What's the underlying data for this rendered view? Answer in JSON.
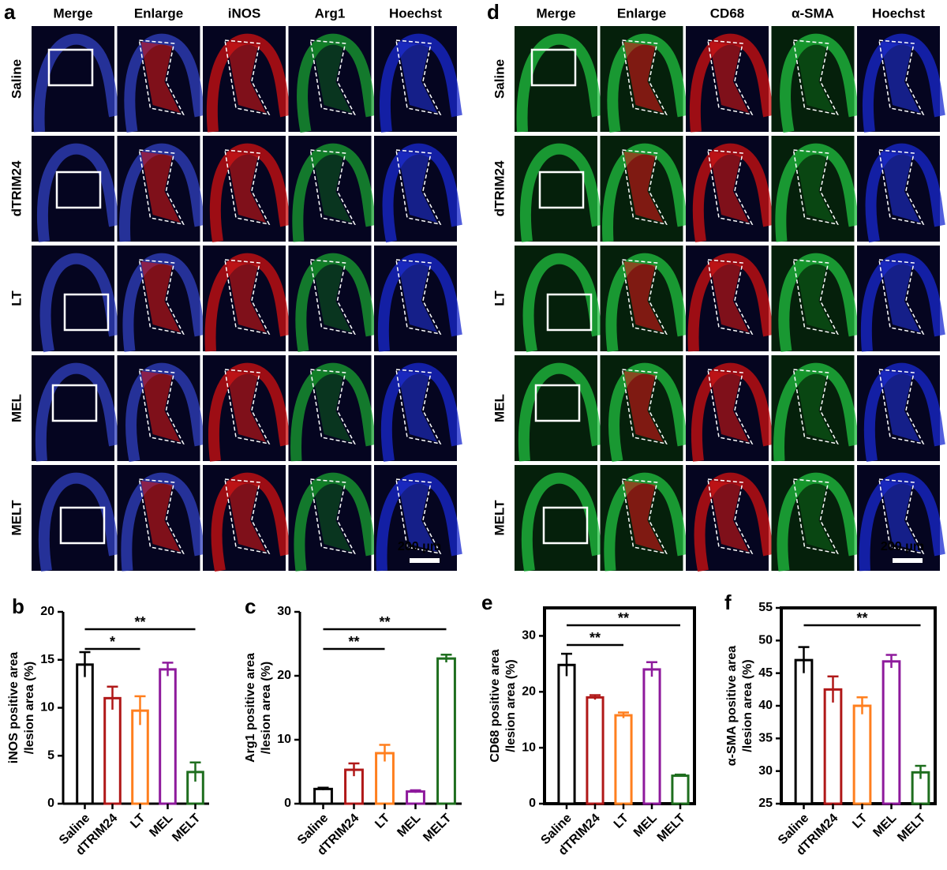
{
  "panel_a": {
    "letter": "a",
    "columns": [
      "Merge",
      "Enlarge",
      "iNOS",
      "Arg1",
      "Hoechst"
    ],
    "column_colors": [
      "#000000",
      "#000000",
      "#e8141c",
      "#1fa84a",
      "#1a2ed8"
    ],
    "rows": [
      "Saline",
      "dTRIM24",
      "LT",
      "MEL",
      "MELT"
    ],
    "scale_bar": "200 μm"
  },
  "panel_d": {
    "letter": "d",
    "columns": [
      "Merge",
      "Enlarge",
      "CD68",
      "α-SMA",
      "Hoechst"
    ],
    "column_colors": [
      "#000000",
      "#000000",
      "#e8141c",
      "#1fa84a",
      "#1a2ed8"
    ],
    "rows": [
      "Saline",
      "dTRIM24",
      "LT",
      "MEL",
      "MELT"
    ],
    "scale_bar": "200 μm"
  },
  "chart_data": [
    {
      "type": "bar",
      "panel": "b",
      "ylabel": [
        "iNOS positive area",
        "/lesion area (%)"
      ],
      "categories": [
        "Saline",
        "dTRIM24",
        "LT",
        "MEL",
        "MELT"
      ],
      "values": [
        14.5,
        11,
        9.7,
        14,
        3.3
      ],
      "errors": [
        1.3,
        1.2,
        1.5,
        0.7,
        1.0
      ],
      "colors": [
        "#000000",
        "#b01818",
        "#ff7f1e",
        "#8e1a9c",
        "#1e6e1e"
      ],
      "ylim": [
        0,
        20
      ],
      "yticks": [
        0,
        5,
        10,
        15,
        20
      ],
      "frame": false,
      "annotations": [
        {
          "text": "*",
          "from": "Saline",
          "to": "LT"
        },
        {
          "text": "**",
          "from": "Saline",
          "to": "MELT"
        }
      ]
    },
    {
      "type": "bar",
      "panel": "c",
      "ylabel": [
        "Arg1 positive area",
        "/lesion area (%)"
      ],
      "categories": [
        "Saline",
        "dTRIM24",
        "LT",
        "MEL",
        "MELT"
      ],
      "values": [
        2.3,
        5.3,
        7.9,
        1.9,
        22.7
      ],
      "errors": [
        0.2,
        1.0,
        1.3,
        0.2,
        0.6
      ],
      "colors": [
        "#000000",
        "#b01818",
        "#ff7f1e",
        "#8e1a9c",
        "#1e6e1e"
      ],
      "ylim": [
        0,
        30
      ],
      "yticks": [
        0,
        10,
        20,
        30
      ],
      "frame": false,
      "annotations": [
        {
          "text": "**",
          "from": "Saline",
          "to": "LT"
        },
        {
          "text": "**",
          "from": "Saline",
          "to": "MELT"
        }
      ]
    },
    {
      "type": "bar",
      "panel": "e",
      "ylabel": [
        "CD68 positive area",
        "/lesion area (%)"
      ],
      "categories": [
        "Saline",
        "dTRIM24",
        "LT",
        "MEL",
        "MELT"
      ],
      "values": [
        24.8,
        19,
        15.8,
        24,
        5
      ],
      "errors": [
        2.0,
        0.4,
        0.5,
        1.3,
        0.2
      ],
      "colors": [
        "#000000",
        "#b01818",
        "#ff7f1e",
        "#8e1a9c",
        "#1e6e1e"
      ],
      "ylim": [
        0,
        35
      ],
      "yticks": [
        0,
        10,
        20,
        30
      ],
      "frame": true,
      "annotations": [
        {
          "text": "**",
          "from": "Saline",
          "to": "LT"
        },
        {
          "text": "**",
          "from": "Saline",
          "to": "MELT"
        }
      ]
    },
    {
      "type": "bar",
      "panel": "f",
      "ylabel": [
        "α-SMA positive area",
        "/lesion area (%)"
      ],
      "categories": [
        "Saline",
        "dTRIM24",
        "LT",
        "MEL",
        "MELT"
      ],
      "values": [
        47,
        42.5,
        40,
        46.8,
        29.8
      ],
      "errors": [
        2.0,
        2.0,
        1.3,
        1.0,
        1.0
      ],
      "colors": [
        "#000000",
        "#b01818",
        "#ff7f1e",
        "#8e1a9c",
        "#1e6e1e"
      ],
      "ylim": [
        25,
        55
      ],
      "yticks": [
        25,
        30,
        35,
        40,
        45,
        50,
        55
      ],
      "frame": true,
      "annotations": [
        {
          "text": "**",
          "from": "Saline",
          "to": "MELT"
        }
      ]
    }
  ]
}
